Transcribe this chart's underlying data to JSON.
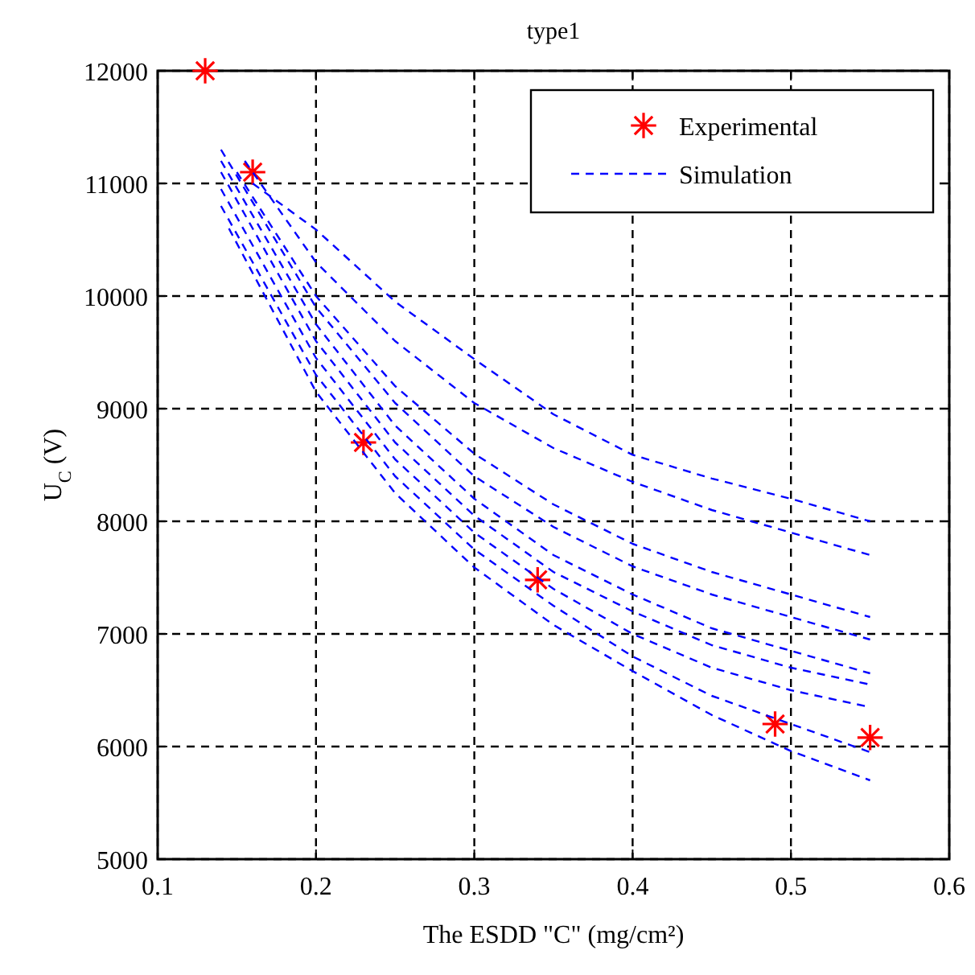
{
  "chart_data": {
    "type": "line",
    "title": "type1",
    "xlabel": "The ESDD \"C\" (mg/cm²)",
    "ylabel": "U$_{C}$ (V)",
    "xlim": [
      0.1,
      0.6
    ],
    "ylim": [
      5000,
      12000
    ],
    "xticks": [
      0.1,
      0.2,
      0.3,
      0.4,
      0.5,
      0.6
    ],
    "yticks": [
      5000,
      6000,
      7000,
      8000,
      9000,
      10000,
      11000,
      12000
    ],
    "grid": true,
    "legend": "top right",
    "series": [
      {
        "name": "Experimental",
        "type": "scatter",
        "marker": "cross",
        "color": "#ff0000",
        "x": [
          0.13,
          0.16,
          0.23,
          0.34,
          0.49,
          0.55
        ],
        "values": [
          12000,
          11100,
          8700,
          7480,
          6200,
          6080
        ]
      },
      {
        "name": "Simulation",
        "type": "line",
        "line_style": "dashed",
        "color": "#0000ff",
        "x": [
          0.16,
          0.2,
          0.25,
          0.3,
          0.35,
          0.4,
          0.45,
          0.5,
          0.55
        ],
        "values": [
          11000,
          10590,
          9950,
          9440,
          8950,
          8590,
          8380,
          8200,
          8000
        ]
      },
      {
        "type": "line",
        "line_style": "dashed",
        "color": "#0000ff",
        "x": [
          0.155,
          0.2,
          0.25,
          0.3,
          0.35,
          0.4,
          0.45,
          0.5,
          0.55
        ],
        "values": [
          11200,
          10300,
          9600,
          9050,
          8650,
          8350,
          8100,
          7900,
          7700
        ]
      },
      {
        "type": "line",
        "line_style": "dashed",
        "color": "#0000ff",
        "x": [
          0.15,
          0.2,
          0.25,
          0.3,
          0.35,
          0.4,
          0.45,
          0.5,
          0.55
        ],
        "values": [
          11100,
          10000,
          9200,
          8600,
          8150,
          7800,
          7550,
          7350,
          7150
        ]
      },
      {
        "type": "line",
        "line_style": "dashed",
        "color": "#0000ff",
        "x": [
          0.14,
          0.2,
          0.25,
          0.3,
          0.35,
          0.4,
          0.45,
          0.5,
          0.55
        ],
        "values": [
          11300,
          9900,
          9050,
          8400,
          7950,
          7600,
          7350,
          7150,
          6950
        ]
      },
      {
        "type": "line",
        "line_style": "dashed",
        "color": "#0000ff",
        "x": [
          0.14,
          0.2,
          0.25,
          0.3,
          0.35,
          0.4,
          0.45,
          0.5,
          0.55
        ],
        "values": [
          11200,
          9750,
          8850,
          8200,
          7700,
          7350,
          7050,
          6850,
          6650
        ]
      },
      {
        "type": "line",
        "line_style": "dashed",
        "color": "#0000ff",
        "x": [
          0.14,
          0.2,
          0.25,
          0.3,
          0.35,
          0.4,
          0.45,
          0.5,
          0.55
        ],
        "values": [
          11100,
          9600,
          8700,
          8050,
          7550,
          7200,
          6900,
          6700,
          6550
        ]
      },
      {
        "type": "line",
        "line_style": "dashed",
        "color": "#0000ff",
        "x": [
          0.14,
          0.2,
          0.25,
          0.3,
          0.35,
          0.4,
          0.45,
          0.5,
          0.55
        ],
        "values": [
          10950,
          9450,
          8550,
          7900,
          7400,
          7000,
          6700,
          6500,
          6350
        ]
      },
      {
        "type": "line",
        "line_style": "dashed",
        "color": "#0000ff",
        "x": [
          0.14,
          0.2,
          0.25,
          0.3,
          0.35,
          0.4,
          0.45,
          0.5,
          0.55
        ],
        "values": [
          10800,
          9300,
          8400,
          7750,
          7250,
          6800,
          6450,
          6200,
          5950
        ]
      },
      {
        "type": "line",
        "line_style": "dashed",
        "color": "#0000ff",
        "x": [
          0.145,
          0.2,
          0.25,
          0.3,
          0.35,
          0.4,
          0.45,
          0.5,
          0.55
        ],
        "values": [
          10600,
          9150,
          8250,
          7590,
          7080,
          6670,
          6280,
          5960,
          5700
        ]
      }
    ]
  }
}
